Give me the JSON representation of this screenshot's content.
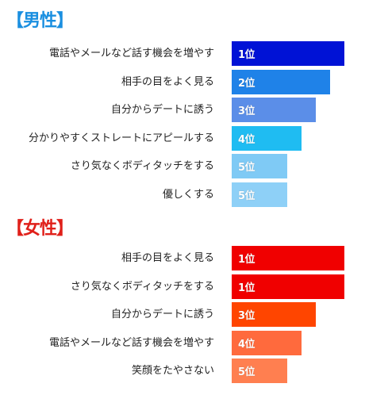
{
  "chart_data": [
    {
      "type": "bar",
      "title": "【男性】",
      "title_color": "#1a8fe0",
      "categories": [
        "電話やメールなど話す機会を増やす",
        "相手の目をよく見る",
        "自分からデートに誘う",
        "分かりやすくストレートにアピールする",
        "さり気なくボディタッチをする",
        "優しくする"
      ],
      "values": [
        1,
        2,
        3,
        4,
        5,
        5
      ],
      "value_labels": [
        "1位",
        "2位",
        "3位",
        "4位",
        "5位",
        "5位"
      ],
      "bar_colors": [
        "#0012d6",
        "#1f82e8",
        "#5b8ee8",
        "#1fbcf2",
        "#7fcaf5",
        "#8ed0f7"
      ],
      "orientation": "horizontal"
    },
    {
      "type": "bar",
      "title": "【女性】",
      "title_color": "#e0201a",
      "categories": [
        "相手の目をよく見る",
        "さり気なくボディタッチをする",
        "自分からデートに誘う",
        "電話やメールなど話す機会を増やす",
        "笑顔をたやさない"
      ],
      "values": [
        1,
        1,
        3,
        4,
        5
      ],
      "value_labels": [
        "1位",
        "1位",
        "3位",
        "4位",
        "5位"
      ],
      "bar_colors": [
        "#f00000",
        "#f00000",
        "#ff4500",
        "#ff6a3d",
        "#ff7f50"
      ],
      "orientation": "horizontal"
    }
  ]
}
